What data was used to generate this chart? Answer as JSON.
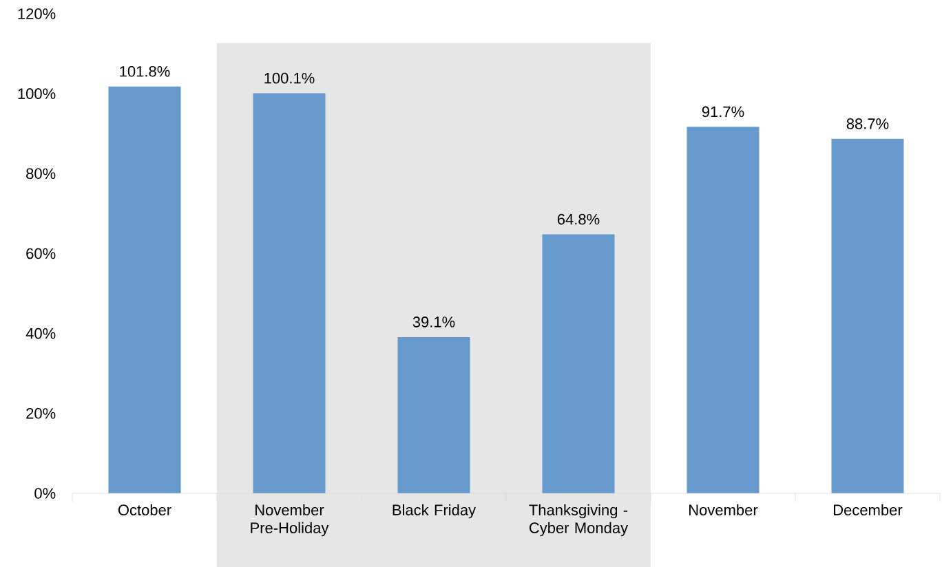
{
  "chart_data": {
    "type": "bar",
    "categories": [
      "October",
      "November Pre-Holiday",
      "Black Friday",
      "Thanksgiving - Cyber Monday",
      "November",
      "December"
    ],
    "values": [
      101.8,
      100.1,
      39.1,
      64.8,
      91.7,
      88.7
    ],
    "value_labels": [
      "101.8%",
      "100.1%",
      "39.1%",
      "64.8%",
      "91.7%",
      "88.7%"
    ],
    "color": "#6699cc",
    "ylim": [
      0,
      120
    ],
    "yticks": [
      {
        "value": 0,
        "label": "0%"
      },
      {
        "value": 20,
        "label": "20%"
      },
      {
        "value": 40,
        "label": "40%"
      },
      {
        "value": 60,
        "label": "60%"
      },
      {
        "value": 80,
        "label": "80%"
      },
      {
        "value": 100,
        "label": "100%"
      },
      {
        "value": 120,
        "label": "120%"
      }
    ],
    "bands": [
      {
        "axis": "x",
        "from": "November Pre-Holiday",
        "to": "Thanksgiving - Cyber Monday",
        "color": "#e6e6e6"
      }
    ],
    "grid": false
  }
}
